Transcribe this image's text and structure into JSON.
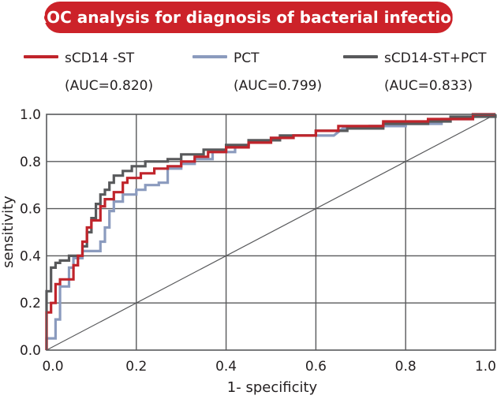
{
  "chart_data": {
    "type": "line",
    "title": "ROC analysis for diagnosis of bacterial infection",
    "xlabel": "1- specificity",
    "ylabel": "sensitivity",
    "xlim": [
      0,
      1
    ],
    "ylim": [
      0,
      1
    ],
    "x_ticks": [
      "0.0",
      "0.2",
      "0.4",
      "0.6",
      "0.8",
      "1.0"
    ],
    "y_ticks": [
      "0.0",
      "0.2",
      "0.4",
      "0.6",
      "0.8",
      "1.0"
    ],
    "grid": true,
    "legend_position": "top",
    "series": [
      {
        "name": "sCD14 -ST",
        "auc_label": "(AUC=0.820)",
        "color": "#c0242b",
        "points": [
          [
            0,
            0
          ],
          [
            0,
            0.16
          ],
          [
            0.01,
            0.16
          ],
          [
            0.01,
            0.2
          ],
          [
            0.02,
            0.2
          ],
          [
            0.02,
            0.28
          ],
          [
            0.03,
            0.28
          ],
          [
            0.03,
            0.3
          ],
          [
            0.06,
            0.3
          ],
          [
            0.06,
            0.36
          ],
          [
            0.07,
            0.36
          ],
          [
            0.07,
            0.4
          ],
          [
            0.08,
            0.4
          ],
          [
            0.08,
            0.46
          ],
          [
            0.09,
            0.46
          ],
          [
            0.09,
            0.52
          ],
          [
            0.1,
            0.52
          ],
          [
            0.1,
            0.55
          ],
          [
            0.12,
            0.55
          ],
          [
            0.12,
            0.61
          ],
          [
            0.13,
            0.61
          ],
          [
            0.13,
            0.64
          ],
          [
            0.15,
            0.64
          ],
          [
            0.15,
            0.67
          ],
          [
            0.17,
            0.67
          ],
          [
            0.17,
            0.71
          ],
          [
            0.18,
            0.71
          ],
          [
            0.18,
            0.73
          ],
          [
            0.21,
            0.73
          ],
          [
            0.21,
            0.75
          ],
          [
            0.24,
            0.75
          ],
          [
            0.24,
            0.77
          ],
          [
            0.27,
            0.77
          ],
          [
            0.27,
            0.78
          ],
          [
            0.3,
            0.78
          ],
          [
            0.3,
            0.8
          ],
          [
            0.33,
            0.8
          ],
          [
            0.33,
            0.82
          ],
          [
            0.36,
            0.82
          ],
          [
            0.36,
            0.84
          ],
          [
            0.4,
            0.84
          ],
          [
            0.4,
            0.86
          ],
          [
            0.45,
            0.86
          ],
          [
            0.45,
            0.88
          ],
          [
            0.5,
            0.88
          ],
          [
            0.5,
            0.9
          ],
          [
            0.55,
            0.9
          ],
          [
            0.55,
            0.91
          ],
          [
            0.6,
            0.91
          ],
          [
            0.6,
            0.93
          ],
          [
            0.65,
            0.93
          ],
          [
            0.65,
            0.95
          ],
          [
            0.75,
            0.95
          ],
          [
            0.75,
            0.97
          ],
          [
            0.85,
            0.97
          ],
          [
            0.85,
            0.98
          ],
          [
            0.95,
            0.98
          ],
          [
            0.95,
            1.0
          ],
          [
            1.0,
            1.0
          ]
        ]
      },
      {
        "name": "PCT",
        "auc_label": "(AUC=0.799)",
        "color": "#8b9bbe",
        "points": [
          [
            0,
            0
          ],
          [
            0,
            0.05
          ],
          [
            0.02,
            0.05
          ],
          [
            0.02,
            0.13
          ],
          [
            0.03,
            0.13
          ],
          [
            0.03,
            0.27
          ],
          [
            0.05,
            0.27
          ],
          [
            0.05,
            0.35
          ],
          [
            0.06,
            0.35
          ],
          [
            0.06,
            0.39
          ],
          [
            0.08,
            0.39
          ],
          [
            0.08,
            0.42
          ],
          [
            0.12,
            0.42
          ],
          [
            0.12,
            0.46
          ],
          [
            0.13,
            0.46
          ],
          [
            0.13,
            0.52
          ],
          [
            0.14,
            0.52
          ],
          [
            0.14,
            0.59
          ],
          [
            0.15,
            0.59
          ],
          [
            0.15,
            0.63
          ],
          [
            0.17,
            0.63
          ],
          [
            0.17,
            0.66
          ],
          [
            0.2,
            0.66
          ],
          [
            0.2,
            0.68
          ],
          [
            0.22,
            0.68
          ],
          [
            0.22,
            0.7
          ],
          [
            0.25,
            0.7
          ],
          [
            0.25,
            0.71
          ],
          [
            0.27,
            0.71
          ],
          [
            0.27,
            0.77
          ],
          [
            0.3,
            0.77
          ],
          [
            0.3,
            0.79
          ],
          [
            0.33,
            0.79
          ],
          [
            0.33,
            0.81
          ],
          [
            0.37,
            0.81
          ],
          [
            0.37,
            0.84
          ],
          [
            0.42,
            0.84
          ],
          [
            0.42,
            0.86
          ],
          [
            0.45,
            0.86
          ],
          [
            0.45,
            0.88
          ],
          [
            0.5,
            0.88
          ],
          [
            0.5,
            0.9
          ],
          [
            0.55,
            0.9
          ],
          [
            0.55,
            0.91
          ],
          [
            0.64,
            0.91
          ],
          [
            0.66,
            0.94
          ],
          [
            0.72,
            0.94
          ],
          [
            0.72,
            0.95
          ],
          [
            0.8,
            0.95
          ],
          [
            0.8,
            0.96
          ],
          [
            0.88,
            0.96
          ],
          [
            0.88,
            0.98
          ],
          [
            0.95,
            0.98
          ],
          [
            0.95,
            1.0
          ],
          [
            1.0,
            1.0
          ]
        ]
      },
      {
        "name": "sCD14-ST+PCT",
        "auc_label": "(AUC=0.833)",
        "color": "#58595b",
        "points": [
          [
            0,
            0
          ],
          [
            0,
            0.25
          ],
          [
            0.01,
            0.25
          ],
          [
            0.01,
            0.35
          ],
          [
            0.02,
            0.35
          ],
          [
            0.02,
            0.37
          ],
          [
            0.03,
            0.37
          ],
          [
            0.03,
            0.38
          ],
          [
            0.05,
            0.38
          ],
          [
            0.05,
            0.4
          ],
          [
            0.08,
            0.4
          ],
          [
            0.08,
            0.44
          ],
          [
            0.09,
            0.44
          ],
          [
            0.09,
            0.5
          ],
          [
            0.1,
            0.5
          ],
          [
            0.1,
            0.56
          ],
          [
            0.11,
            0.56
          ],
          [
            0.11,
            0.62
          ],
          [
            0.12,
            0.62
          ],
          [
            0.12,
            0.66
          ],
          [
            0.13,
            0.66
          ],
          [
            0.13,
            0.68
          ],
          [
            0.14,
            0.68
          ],
          [
            0.14,
            0.71
          ],
          [
            0.15,
            0.71
          ],
          [
            0.15,
            0.74
          ],
          [
            0.17,
            0.74
          ],
          [
            0.17,
            0.76
          ],
          [
            0.19,
            0.76
          ],
          [
            0.19,
            0.78
          ],
          [
            0.22,
            0.78
          ],
          [
            0.22,
            0.8
          ],
          [
            0.27,
            0.8
          ],
          [
            0.27,
            0.81
          ],
          [
            0.3,
            0.81
          ],
          [
            0.3,
            0.83
          ],
          [
            0.35,
            0.83
          ],
          [
            0.35,
            0.85
          ],
          [
            0.4,
            0.85
          ],
          [
            0.4,
            0.87
          ],
          [
            0.45,
            0.87
          ],
          [
            0.45,
            0.89
          ],
          [
            0.52,
            0.89
          ],
          [
            0.52,
            0.91
          ],
          [
            0.6,
            0.91
          ],
          [
            0.6,
            0.93
          ],
          [
            0.67,
            0.93
          ],
          [
            0.67,
            0.94
          ],
          [
            0.75,
            0.94
          ],
          [
            0.75,
            0.96
          ],
          [
            0.85,
            0.96
          ],
          [
            0.85,
            0.97
          ],
          [
            0.9,
            0.97
          ],
          [
            0.9,
            0.99
          ],
          [
            1.0,
            0.99
          ],
          [
            1.0,
            1.0
          ]
        ]
      }
    ]
  }
}
